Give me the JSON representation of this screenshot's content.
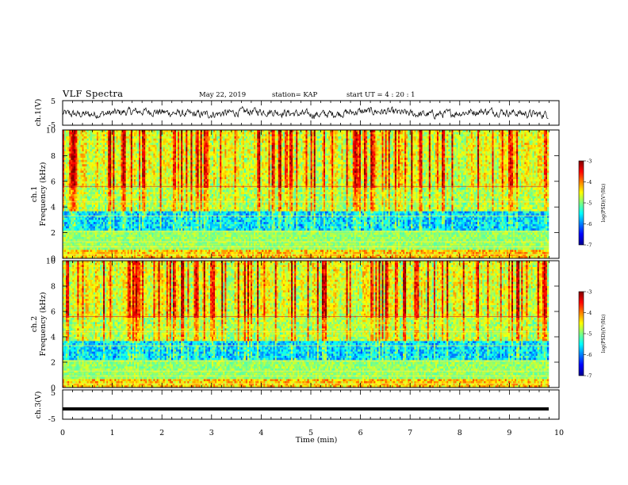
{
  "header": {
    "title": "VLF Spectra",
    "date": "May 22, 2019",
    "station": "station= KAP",
    "start": "start  UT =   4 : 20 : 1"
  },
  "chart_data": [
    {
      "type": "line",
      "panel": "ch1-waveform",
      "ylabel": "ch.1(V)",
      "ylim": [
        -5,
        5
      ],
      "yticks": [
        "5",
        "-5"
      ],
      "xlim": [
        0,
        10
      ],
      "description_values": "noisy waveform around 0 V, roughly within +/-3 V"
    },
    {
      "type": "heatmap",
      "panel": "ch1-spectrogram",
      "ylabel": "ch.1 Frequency  (kHz)",
      "ylim": [
        0,
        10
      ],
      "yticks": [
        "0",
        "2",
        "4",
        "6",
        "8",
        "10"
      ],
      "xlim": [
        0,
        9.8
      ],
      "colorbar": {
        "title": "log(PSD)(V²/Hz)",
        "ticks": [
          "-3",
          "-4",
          "-5",
          "-6",
          "-7"
        ],
        "range": [
          -7,
          -3
        ]
      }
    },
    {
      "type": "heatmap",
      "panel": "ch2-spectrogram",
      "ylabel": "ch.2 Frequency  (kHz)",
      "ylim": [
        0,
        10
      ],
      "yticks": [
        "0",
        "2",
        "4",
        "6",
        "8",
        "10"
      ],
      "xlim": [
        0,
        9.8
      ],
      "colorbar": {
        "title": "log(PSD)(V²/Hz)",
        "ticks": [
          "-3",
          "-4",
          "-5",
          "-6",
          "-7"
        ],
        "range": [
          -7,
          -3
        ]
      }
    },
    {
      "type": "line",
      "panel": "ch3-waveform",
      "ylabel": "ch.3(V)",
      "ylim": [
        -5,
        5
      ],
      "yticks": [
        "5",
        "-5"
      ],
      "xlim": [
        0,
        10
      ],
      "series": [
        {
          "x": [
            0,
            9.8
          ],
          "values": [
            -1.5,
            -1.5
          ]
        }
      ]
    }
  ],
  "xaxis": {
    "label": "Time  (min)",
    "ticks": [
      "0",
      "1",
      "2",
      "3",
      "4",
      "5",
      "6",
      "7",
      "8",
      "9",
      "10"
    ],
    "range": [
      0,
      10
    ]
  }
}
